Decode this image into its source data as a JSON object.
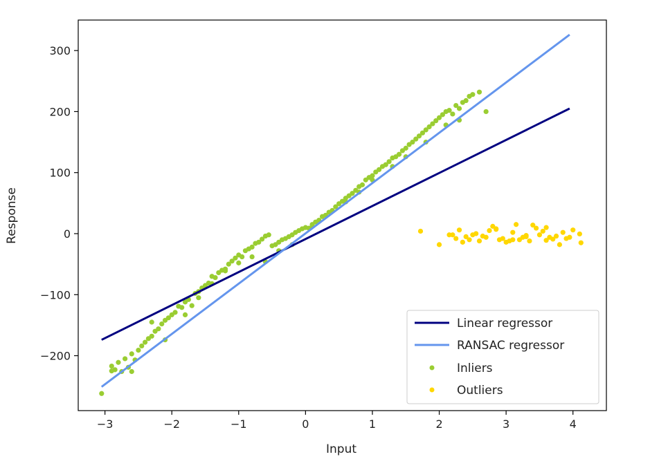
{
  "chart_data": {
    "type": "scatter",
    "title": "",
    "xlabel": "Input",
    "ylabel": "Response",
    "xlim": [
      -3.4,
      4.5
    ],
    "ylim": [
      -290,
      350
    ],
    "xticks": [
      -3,
      -2,
      -1,
      0,
      1,
      2,
      3,
      4
    ],
    "yticks": [
      -200,
      -100,
      0,
      100,
      200,
      300
    ],
    "tick_labels": {
      "x": [
        "−3",
        "−2",
        "−1",
        "0",
        "1",
        "2",
        "3",
        "4"
      ],
      "y": [
        "−200",
        "−100",
        "0",
        "100",
        "200",
        "300"
      ]
    },
    "grid": false,
    "legend_position": "lower-right",
    "colors": {
      "linear": "#000080",
      "ransac": "#6495ed",
      "inliers": "#9acd32",
      "outliers": "#ffd700"
    },
    "series": [
      {
        "name": "Linear regressor",
        "kind": "line",
        "x": [
          -3.05,
          3.95
        ],
        "y": [
          -174,
          205
        ]
      },
      {
        "name": "RANSAC regressor",
        "kind": "line",
        "x": [
          -3.05,
          3.95
        ],
        "y": [
          -251,
          326
        ]
      },
      {
        "name": "Inliers",
        "kind": "scatter",
        "x": [
          -3.05,
          -2.9,
          -2.85,
          -2.8,
          -2.75,
          -2.7,
          -2.65,
          -2.6,
          -2.55,
          -2.5,
          -2.45,
          -2.4,
          -2.35,
          -2.3,
          -2.25,
          -2.2,
          -2.15,
          -2.1,
          -2.05,
          -2.0,
          -1.95,
          -1.9,
          -1.85,
          -1.8,
          -1.75,
          -1.7,
          -1.65,
          -1.6,
          -1.55,
          -1.5,
          -1.45,
          -1.4,
          -1.35,
          -1.3,
          -1.25,
          -1.2,
          -1.15,
          -1.1,
          -1.05,
          -1.0,
          -0.95,
          -0.9,
          -0.85,
          -0.8,
          -0.75,
          -0.7,
          -0.65,
          -0.6,
          -0.55,
          -0.5,
          -0.45,
          -0.4,
          -0.35,
          -0.3,
          -0.25,
          -0.2,
          -0.15,
          -0.1,
          -0.05,
          0.0,
          0.05,
          0.1,
          0.15,
          0.2,
          0.25,
          0.3,
          0.35,
          0.4,
          0.45,
          0.5,
          0.55,
          0.6,
          0.65,
          0.7,
          0.75,
          0.8,
          0.85,
          0.9,
          0.95,
          1.0,
          1.05,
          1.1,
          1.15,
          1.2,
          1.25,
          1.3,
          1.35,
          1.4,
          1.45,
          1.5,
          1.55,
          1.6,
          1.65,
          1.7,
          1.75,
          1.8,
          1.85,
          1.9,
          1.95,
          2.0,
          2.05,
          2.1,
          2.15,
          2.2,
          2.25,
          2.3,
          2.35,
          2.4,
          2.45,
          2.5,
          2.6,
          2.7,
          -2.9,
          -2.6,
          -2.3,
          -2.1,
          -1.8,
          -1.6,
          -1.4,
          -1.2,
          -1.0,
          -0.8,
          -0.6,
          -0.4,
          -0.2,
          0.1,
          0.3,
          0.6,
          0.8,
          1.0,
          1.3,
          1.5,
          1.8,
          2.1,
          2.3
        ],
        "y": [
          -262,
          -217,
          -223,
          -211,
          -226,
          -205,
          -219,
          -226,
          -207,
          -191,
          -184,
          -178,
          -172,
          -168,
          -160,
          -156,
          -148,
          -142,
          -138,
          -133,
          -129,
          -119,
          -121,
          -112,
          -108,
          -118,
          -98,
          -95,
          -89,
          -85,
          -81,
          -70,
          -72,
          -64,
          -60,
          -58,
          -50,
          -45,
          -40,
          -35,
          -38,
          -28,
          -25,
          -22,
          -16,
          -14,
          -9,
          -4,
          -2,
          -20,
          -18,
          -14,
          -10,
          -8,
          -5,
          -2,
          2,
          5,
          8,
          10,
          9,
          15,
          19,
          22,
          28,
          30,
          35,
          38,
          44,
          49,
          53,
          58,
          62,
          66,
          71,
          77,
          80,
          88,
          92,
          95,
          101,
          105,
          110,
          113,
          118,
          124,
          126,
          130,
          136,
          140,
          146,
          150,
          155,
          160,
          165,
          170,
          175,
          180,
          185,
          190,
          195,
          200,
          202,
          196,
          210,
          205,
          215,
          218,
          225,
          228,
          232,
          200,
          -225,
          -197,
          -145,
          -174,
          -133,
          -105,
          -82,
          -61,
          -48,
          -38,
          -46,
          -28,
          -18,
          12,
          30,
          52,
          68,
          88,
          110,
          126,
          150,
          178,
          186
        ]
      },
      {
        "name": "Outliers",
        "kind": "scatter",
        "x": [
          1.72,
          2.0,
          2.15,
          2.2,
          2.25,
          2.3,
          2.35,
          2.4,
          2.45,
          2.5,
          2.55,
          2.6,
          2.65,
          2.7,
          2.75,
          2.8,
          2.85,
          2.9,
          2.95,
          3.0,
          3.05,
          3.1,
          3.15,
          3.2,
          3.25,
          3.3,
          3.35,
          3.4,
          3.45,
          3.5,
          3.55,
          3.6,
          3.65,
          3.7,
          3.75,
          3.8,
          3.85,
          3.9,
          3.95,
          4.0,
          4.1,
          4.12,
          2.85,
          3.1,
          3.3,
          3.6
        ],
        "y": [
          4,
          -18,
          -2,
          -2,
          -8,
          6,
          -14,
          -5,
          -10,
          -2,
          0,
          -12,
          -4,
          -6,
          5,
          12,
          7,
          -10,
          -8,
          -14,
          -12,
          2,
          15,
          -10,
          -6,
          -5,
          -12,
          14,
          9,
          -2,
          4,
          10,
          -6,
          -9,
          -4,
          -18,
          2,
          -8,
          -6,
          6,
          -0.5,
          -15,
          8,
          -10,
          -3,
          -11
        ]
      }
    ]
  }
}
